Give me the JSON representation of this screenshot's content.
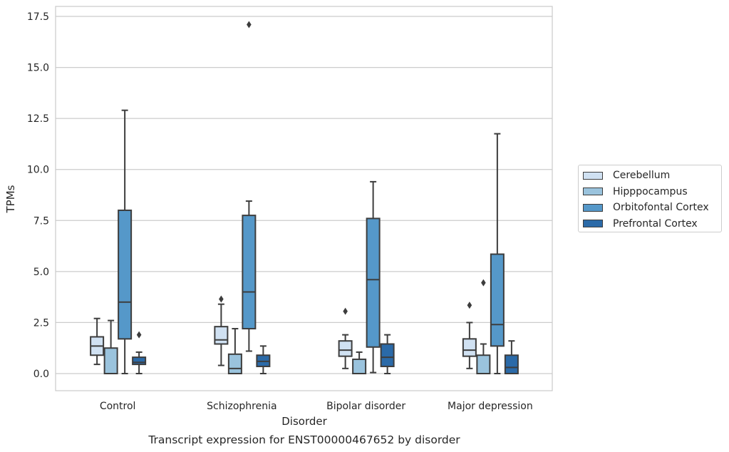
{
  "chart_data": {
    "type": "box",
    "title": "Transcript expression for ENST00000467652 by disorder",
    "xlabel": "Disorder",
    "ylabel": "TPMs",
    "ylim": [
      -0.8,
      18.0
    ],
    "yticks": [
      "0.0",
      "2.5",
      "5.0",
      "7.5",
      "10.0",
      "12.5",
      "15.0",
      "17.5"
    ],
    "grid": "horizontal",
    "legend_position": "right",
    "categories": [
      "Control",
      "Schizophrenia",
      "Bipolar disorder",
      "Major depression"
    ],
    "series": [
      {
        "name": "Cerebellum",
        "color": "#d0e1f2",
        "boxes": [
          {
            "whisker_low": 0.45,
            "q1": 0.9,
            "median": 1.35,
            "q3": 1.8,
            "whisker_high": 2.7,
            "outliers": []
          },
          {
            "whisker_low": 0.4,
            "q1": 1.45,
            "median": 1.65,
            "q3": 2.3,
            "whisker_high": 3.4,
            "outliers": [
              3.65
            ]
          },
          {
            "whisker_low": 0.25,
            "q1": 0.85,
            "median": 1.15,
            "q3": 1.6,
            "whisker_high": 1.9,
            "outliers": [
              3.05
            ]
          },
          {
            "whisker_low": 0.25,
            "q1": 0.85,
            "median": 1.15,
            "q3": 1.7,
            "whisker_high": 2.5,
            "outliers": [
              3.35
            ]
          }
        ]
      },
      {
        "name": "Hipppocampus",
        "color": "#9ac3dd",
        "boxes": [
          {
            "whisker_low": 0.0,
            "q1": 0.0,
            "median": 0.0,
            "q3": 1.25,
            "whisker_high": 2.6,
            "outliers": []
          },
          {
            "whisker_low": 0.0,
            "q1": 0.0,
            "median": 0.25,
            "q3": 0.95,
            "whisker_high": 2.2,
            "outliers": []
          },
          {
            "whisker_low": 0.0,
            "q1": 0.0,
            "median": 0.0,
            "q3": 0.7,
            "whisker_high": 1.05,
            "outliers": []
          },
          {
            "whisker_low": 0.0,
            "q1": 0.0,
            "median": 0.0,
            "q3": 0.9,
            "whisker_high": 1.45,
            "outliers": [
              4.45
            ]
          }
        ]
      },
      {
        "name": "Orbitofontal Cortex",
        "color": "#5598c9",
        "boxes": [
          {
            "whisker_low": 0.0,
            "q1": 1.7,
            "median": 3.5,
            "q3": 8.0,
            "whisker_high": 12.9,
            "outliers": []
          },
          {
            "whisker_low": 1.1,
            "q1": 2.2,
            "median": 4.0,
            "q3": 7.75,
            "whisker_high": 8.45,
            "outliers": [
              17.1
            ]
          },
          {
            "whisker_low": 0.05,
            "q1": 1.3,
            "median": 4.6,
            "q3": 7.6,
            "whisker_high": 9.4,
            "outliers": []
          },
          {
            "whisker_low": 0.0,
            "q1": 1.35,
            "median": 2.4,
            "q3": 5.85,
            "whisker_high": 11.75,
            "outliers": []
          }
        ]
      },
      {
        "name": "Prefrontal Cortex",
        "color": "#2b6aa8",
        "boxes": [
          {
            "whisker_low": 0.0,
            "q1": 0.45,
            "median": 0.55,
            "q3": 0.8,
            "whisker_high": 1.05,
            "outliers": [
              1.9
            ]
          },
          {
            "whisker_low": 0.0,
            "q1": 0.35,
            "median": 0.6,
            "q3": 0.9,
            "whisker_high": 1.35,
            "outliers": []
          },
          {
            "whisker_low": 0.0,
            "q1": 0.35,
            "median": 0.8,
            "q3": 1.45,
            "whisker_high": 1.9,
            "outliers": []
          },
          {
            "whisker_low": 0.0,
            "q1": 0.0,
            "median": 0.3,
            "q3": 0.9,
            "whisker_high": 1.6,
            "outliers": []
          }
        ]
      }
    ]
  }
}
